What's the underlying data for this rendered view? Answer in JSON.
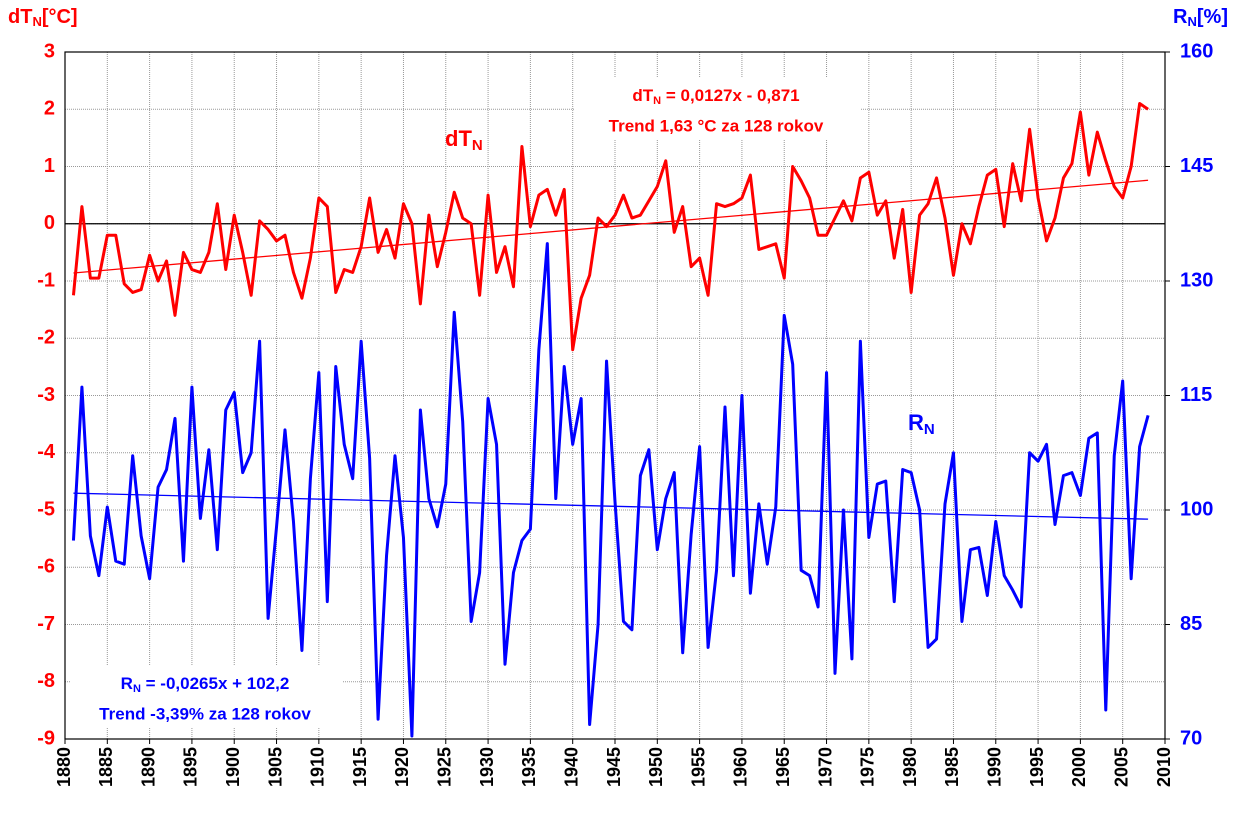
{
  "chart_data": {
    "type": "line",
    "y_label": {
      "main": "dT",
      "sub": "N",
      "suffix": "[°C]"
    },
    "y2_label": {
      "main": "R",
      "sub": "N",
      "suffix": "[%]"
    },
    "x": [
      1881,
      1882,
      1883,
      1884,
      1885,
      1886,
      1887,
      1888,
      1889,
      1890,
      1891,
      1892,
      1893,
      1894,
      1895,
      1896,
      1897,
      1898,
      1899,
      1900,
      1901,
      1902,
      1903,
      1904,
      1905,
      1906,
      1907,
      1908,
      1909,
      1910,
      1911,
      1912,
      1913,
      1914,
      1915,
      1916,
      1917,
      1918,
      1919,
      1920,
      1921,
      1922,
      1923,
      1924,
      1925,
      1926,
      1927,
      1928,
      1929,
      1930,
      1931,
      1932,
      1933,
      1934,
      1935,
      1936,
      1937,
      1938,
      1939,
      1940,
      1941,
      1942,
      1943,
      1944,
      1945,
      1946,
      1947,
      1948,
      1949,
      1950,
      1951,
      1952,
      1953,
      1954,
      1955,
      1956,
      1957,
      1958,
      1959,
      1960,
      1961,
      1962,
      1963,
      1964,
      1965,
      1966,
      1967,
      1968,
      1969,
      1970,
      1971,
      1972,
      1973,
      1974,
      1975,
      1976,
      1977,
      1978,
      1979,
      1980,
      1981,
      1982,
      1983,
      1984,
      1985,
      1986,
      1987,
      1988,
      1989,
      1990,
      1991,
      1992,
      1993,
      1994,
      1995,
      1996,
      1997,
      1998,
      1999,
      2000,
      2001,
      2002,
      2003,
      2004,
      2005,
      2006,
      2007,
      2008
    ],
    "xlim": [
      1880,
      2010
    ],
    "xticks": [
      1880,
      1885,
      1890,
      1895,
      1900,
      1905,
      1910,
      1915,
      1920,
      1925,
      1930,
      1935,
      1940,
      1945,
      1950,
      1955,
      1960,
      1965,
      1970,
      1975,
      1980,
      1985,
      1990,
      1995,
      2000,
      2005,
      2010
    ],
    "ylim": [
      -9,
      3
    ],
    "yticks": [
      -9,
      -8,
      -7,
      -6,
      -5,
      -4,
      -3,
      -2,
      -1,
      0,
      1,
      2,
      3
    ],
    "y2lim": [
      70,
      160
    ],
    "y2ticks": [
      70,
      85,
      100,
      115,
      130,
      145,
      160
    ],
    "grid": true,
    "series": [
      {
        "name": "dT",
        "name_sub": "N",
        "color": "#ff0000",
        "axis": "y",
        "values": [
          -1.25,
          0.3,
          -0.95,
          -0.95,
          -0.2,
          -0.2,
          -1.05,
          -1.2,
          -1.15,
          -0.55,
          -1.0,
          -0.65,
          -1.6,
          -0.5,
          -0.8,
          -0.85,
          -0.5,
          0.35,
          -0.8,
          0.15,
          -0.5,
          -1.25,
          0.05,
          -0.1,
          -0.3,
          -0.2,
          -0.85,
          -1.3,
          -0.6,
          0.45,
          0.3,
          -1.2,
          -0.8,
          -0.85,
          -0.4,
          0.45,
          -0.5,
          -0.1,
          -0.6,
          0.35,
          0.0,
          -1.4,
          0.15,
          -0.75,
          -0.15,
          0.55,
          0.1,
          0.0,
          -1.25,
          0.5,
          -0.85,
          -0.4,
          -1.1,
          1.35,
          -0.05,
          0.5,
          0.6,
          0.15,
          0.6,
          -2.2,
          -1.3,
          -0.9,
          0.1,
          -0.05,
          0.15,
          0.5,
          0.1,
          0.15,
          0.4,
          0.65,
          1.1,
          -0.15,
          0.3,
          -0.75,
          -0.6,
          -1.25,
          0.35,
          0.3,
          0.35,
          0.45,
          0.85,
          -0.45,
          -0.4,
          -0.35,
          -0.95,
          1.0,
          0.75,
          0.45,
          -0.2,
          -0.2,
          0.1,
          0.4,
          0.05,
          0.8,
          0.9,
          0.15,
          0.4,
          -0.6,
          0.25,
          -1.2,
          0.15,
          0.35,
          0.8,
          0.1,
          -0.9,
          0.0,
          -0.35,
          0.3,
          0.85,
          0.95,
          -0.05,
          1.05,
          0.4,
          1.65,
          0.45,
          -0.3,
          0.1,
          0.8,
          1.05,
          1.95,
          0.85,
          1.6,
          1.1,
          0.65,
          0.45,
          1.0,
          2.1,
          2.0
        ],
        "trend": {
          "x": [
            1881,
            2008
          ],
          "values": [
            -0.86,
            0.76
          ]
        },
        "equation": {
          "main": "dT",
          "sub": "N",
          "rest": " = 0,0127x - 0,871",
          "line2": "Trend 1,63 °C za 128 rokov"
        }
      },
      {
        "name": "R",
        "name_sub": "N",
        "color": "#0000ff",
        "axis": "y2",
        "values": [
          96,
          116.1,
          96.6,
          91.4,
          100.4,
          93.3,
          92.9,
          107.1,
          96.6,
          91,
          103,
          105.3,
          112,
          93.3,
          116.1,
          98.9,
          107.9,
          94.8,
          113.1,
          115.4,
          104.9,
          107.5,
          122.1,
          85.8,
          97.8,
          110.5,
          98.5,
          81.6,
          104.1,
          118,
          88,
          118.8,
          108.6,
          104.1,
          122.1,
          106.8,
          72.6,
          94,
          107.1,
          96.4,
          70.4,
          113.1,
          101.5,
          97.8,
          103.4,
          125.9,
          111.6,
          85.4,
          91.8,
          114.6,
          108.6,
          79.8,
          91.8,
          96,
          97.5,
          121,
          134.9,
          101.5,
          118.8,
          108.6,
          114.6,
          71.9,
          85,
          119.5,
          101.1,
          85.4,
          84.3,
          104.5,
          107.9,
          94.8,
          101.5,
          104.9,
          81.3,
          96.8,
          108.3,
          82,
          92.1,
          113.5,
          91.4,
          115,
          89.1,
          100.8,
          92.9,
          100.4,
          125.5,
          119.1,
          92.1,
          91.4,
          87.3,
          118,
          78.6,
          100,
          80.5,
          122.1,
          96.4,
          103.4,
          103.8,
          88,
          105.3,
          104.9,
          100,
          82,
          83.1,
          100.8,
          107.5,
          85.4,
          94.8,
          95.1,
          88.8,
          98.5,
          91.4,
          89.5,
          87.3,
          107.5,
          106.4,
          108.6,
          98.1,
          104.5,
          104.9,
          101.9,
          109.4,
          110.1,
          73.8,
          107.1,
          116.9,
          91,
          108.3,
          112.4
        ],
        "trend": {
          "x": [
            1881,
            2008
          ],
          "values": [
            102.2,
            98.8
          ]
        },
        "equation": {
          "main": "R",
          "sub": "N",
          "rest": " = -0,0265x + 102,2",
          "line2": "Trend -3,39% za 128 rokov"
        }
      }
    ]
  }
}
